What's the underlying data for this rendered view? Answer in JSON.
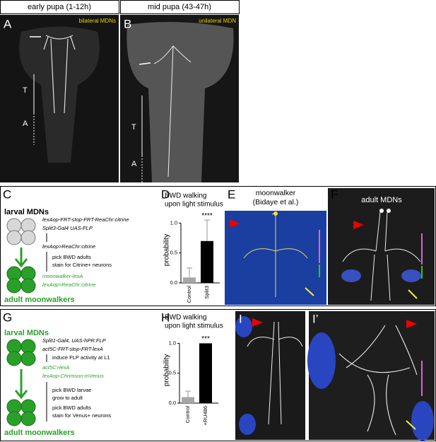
{
  "header": {
    "columns": [
      "early pupa (1-12h)",
      "mid pupa (43-47h)"
    ]
  },
  "panels": {
    "A": {
      "letter": "A",
      "label": "bilateral MDNs",
      "region_labels": [
        "T",
        "A"
      ]
    },
    "B": {
      "letter": "B",
      "label": "unilateral MDN",
      "region_labels": [
        "T",
        "A"
      ]
    },
    "C": {
      "letter": "C",
      "start": "larval MDNs",
      "steps": [
        "lexAop-FRT-stop-FRT-ReaChr:citrine",
        "Split3-Gal4 UAS-FLP",
        "lexAop>ReaChr:citrine",
        "pick BWD adults",
        "stain for Citrine+ neurons"
      ],
      "result": [
        "moonwalker-lexA",
        "lexAop>ReaChr:citrine"
      ],
      "end": "adult moonwalkers"
    },
    "D": {
      "letter": "D"
    },
    "E": {
      "letter": "E",
      "label": [
        "moonwalker",
        "(Bidaye et al.)"
      ]
    },
    "F": {
      "letter": "F",
      "label": "adult MDNs"
    },
    "G": {
      "letter": "G",
      "start": "larval MDNs",
      "steps": [
        "Split1-Gal4, UAS-hPR:FLP",
        "act5C-FRT-stop-FRT-lexA",
        "induce FLP activity at L1"
      ],
      "result": [
        "act5C>lexA",
        "lexAop-Chrimson:mVenus"
      ],
      "steps2": [
        "pick BWD larvae",
        "grow to adult",
        "pick BWD adults",
        "stain for Venus+ neurons"
      ],
      "end": "adult moonwalkers"
    },
    "H": {
      "letter": "H"
    },
    "I": {
      "letter": "I"
    },
    "I2": {
      "letter": "I’"
    }
  },
  "chart_data": [
    {
      "type": "bar",
      "title_lines": [
        "BWD walking",
        "upon light stimulus"
      ],
      "ylabel": "probability",
      "categories": [
        "Control",
        "Split3"
      ],
      "values": [
        0.09,
        0.7
      ],
      "errors": [
        0.16,
        0.35
      ],
      "colors": [
        "#a6a6a6",
        "#000000"
      ],
      "error_color": "#a6a6a6",
      "ylim": [
        0,
        1.1
      ],
      "yticks": [
        {
          "value": 0,
          "label": "0.0"
        },
        {
          "value": 0.5,
          "label": "0.5"
        },
        {
          "value": 1,
          "label": "1.0"
        }
      ],
      "annotation": "****"
    },
    {
      "type": "bar",
      "title_lines": [
        "BWD walking",
        "upon light stimulus"
      ],
      "ylabel": "probability",
      "categories": [
        "Control",
        "+RU486"
      ],
      "values": [
        0.1,
        1.0
      ],
      "errors": [
        0.1,
        0
      ],
      "colors": [
        "#a6a6a6",
        "#000000"
      ],
      "error_color": "#a6a6a6",
      "ylim": [
        0,
        1.1
      ],
      "yticks": [
        {
          "value": 0,
          "label": "0.0"
        },
        {
          "value": 0.5,
          "label": "0.5"
        },
        {
          "value": 1,
          "label": "1.0"
        }
      ],
      "annotation": "***"
    }
  ]
}
